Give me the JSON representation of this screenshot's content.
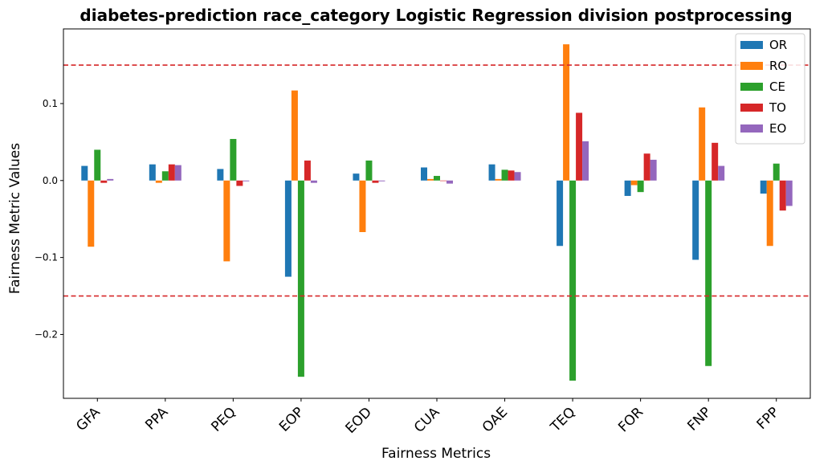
{
  "chart_data": {
    "type": "bar",
    "title": "diabetes-prediction race_category Logistic Regression division postprocessing",
    "xlabel": "Fairness Metrics",
    "ylabel": "Fairness Metric Values",
    "categories": [
      "GFA",
      "PPA",
      "PEQ",
      "EOP",
      "EOD",
      "CUA",
      "OAE",
      "TEQ",
      "FOR",
      "FNP",
      "FPP"
    ],
    "ylim": [
      -0.283,
      0.197
    ],
    "yticks": [
      -0.2,
      -0.1,
      0.0,
      0.1
    ],
    "ytick_labels": [
      "−0.2",
      "−0.1",
      "0.0",
      "0.1"
    ],
    "threshold_lines": [
      0.15,
      -0.15
    ],
    "threshold_color": "#d62728",
    "legend_position": "top-right",
    "series": [
      {
        "name": "OR",
        "color": "#1f77b4",
        "values": [
          0.019,
          0.021,
          0.015,
          -0.125,
          0.009,
          0.017,
          0.021,
          -0.085,
          -0.02,
          -0.103,
          -0.017
        ]
      },
      {
        "name": "RO",
        "color": "#ff7f0e",
        "values": [
          -0.086,
          -0.003,
          -0.105,
          0.117,
          -0.067,
          0.002,
          0.002,
          0.177,
          -0.006,
          0.095,
          -0.085
        ]
      },
      {
        "name": "CE",
        "color": "#2ca02c",
        "values": [
          0.04,
          0.012,
          0.054,
          -0.255,
          0.026,
          0.006,
          0.014,
          -0.26,
          -0.015,
          -0.241,
          0.022
        ]
      },
      {
        "name": "TO",
        "color": "#d62728",
        "values": [
          -0.003,
          0.021,
          -0.007,
          0.026,
          -0.003,
          0.0,
          0.013,
          0.088,
          0.035,
          0.049,
          -0.039
        ]
      },
      {
        "name": "EO",
        "color": "#9467bd",
        "values": [
          0.002,
          0.02,
          -0.001,
          -0.003,
          -0.001,
          -0.004,
          0.011,
          0.051,
          0.027,
          0.019,
          -0.033
        ]
      }
    ]
  }
}
